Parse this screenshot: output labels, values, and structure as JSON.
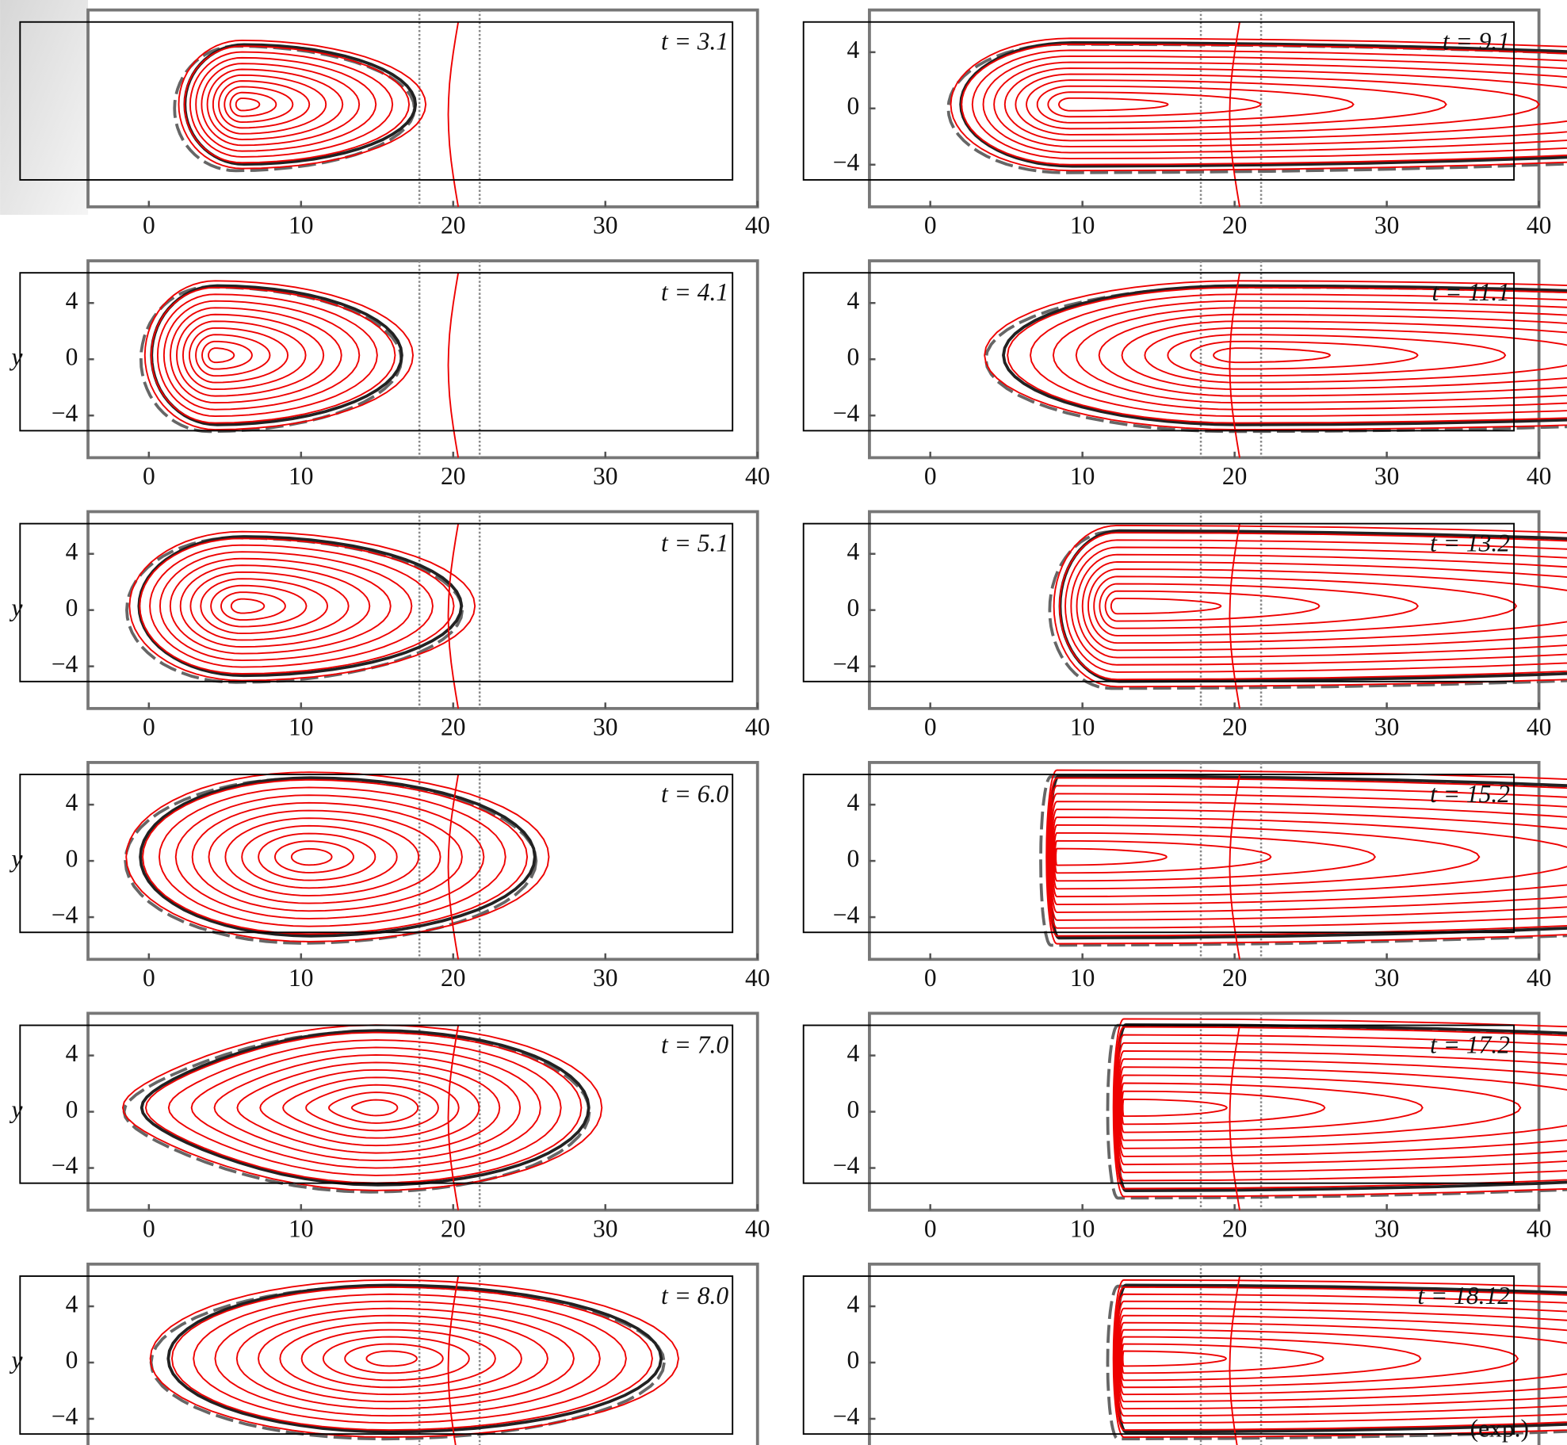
{
  "chart_data": [
    {
      "type": "contour",
      "title": "t = 3.1",
      "xlim": [
        -4,
        40
      ],
      "ylim": [
        -7,
        7
      ],
      "xticks": [
        0,
        10,
        20,
        30,
        40
      ]
    },
    {
      "type": "contour",
      "title": "t = 9.1",
      "xlim": [
        -4,
        40
      ],
      "ylim": [
        -7,
        7
      ],
      "xticks": [
        0,
        10,
        20,
        30,
        40
      ],
      "yticks": [
        {
          "value": -4,
          "label": "−4"
        },
        0,
        4
      ]
    },
    {
      "type": "contour",
      "title": "t = 4.1",
      "ylabel": "y",
      "xlim": [
        -4,
        40
      ],
      "ylim": [
        -7,
        7
      ],
      "xticks": [
        0,
        10,
        20,
        30,
        40
      ],
      "yticks": [
        {
          "value": -4,
          "label": "−4"
        },
        0,
        4
      ]
    },
    {
      "type": "contour",
      "title": "t = 11.1",
      "xlim": [
        -4,
        40
      ],
      "ylim": [
        -7,
        7
      ],
      "xticks": [
        0,
        10,
        20,
        30,
        40
      ],
      "yticks": [
        {
          "value": -4,
          "label": "−4"
        },
        0,
        4
      ]
    },
    {
      "type": "contour",
      "title": "t = 5.1",
      "ylabel": "y",
      "xlim": [
        -4,
        40
      ],
      "ylim": [
        -7,
        7
      ],
      "xticks": [
        0,
        10,
        20,
        30,
        40
      ],
      "yticks": [
        {
          "value": -4,
          "label": "−4"
        },
        0,
        4
      ]
    },
    {
      "type": "contour",
      "title": "t = 13.2",
      "xlim": [
        -4,
        40
      ],
      "ylim": [
        -7,
        7
      ],
      "xticks": [
        0,
        10,
        20,
        30,
        40
      ],
      "yticks": [
        {
          "value": -4,
          "label": "−4"
        },
        0,
        4
      ]
    },
    {
      "type": "contour",
      "title": "t = 6.0",
      "ylabel": "y",
      "xlim": [
        -4,
        40
      ],
      "ylim": [
        -7,
        7
      ],
      "xticks": [
        0,
        10,
        20,
        30,
        40
      ],
      "yticks": [
        {
          "value": -4,
          "label": "−4"
        },
        0,
        4
      ]
    },
    {
      "type": "contour",
      "title": "t = 15.2",
      "xlim": [
        -4,
        40
      ],
      "ylim": [
        -7,
        7
      ],
      "xticks": [
        0,
        10,
        20,
        30,
        40
      ],
      "yticks": [
        {
          "value": -4,
          "label": "−4"
        },
        0,
        4
      ]
    },
    {
      "type": "contour",
      "title": "t = 7.0",
      "ylabel": "y",
      "xlim": [
        -4,
        40
      ],
      "ylim": [
        -7,
        7
      ],
      "xticks": [
        0,
        10,
        20,
        30,
        40
      ],
      "yticks": [
        {
          "value": -4,
          "label": "−4"
        },
        0,
        4
      ]
    },
    {
      "type": "contour",
      "title": "t = 17.2",
      "xlim": [
        -4,
        40
      ],
      "ylim": [
        -7,
        7
      ],
      "xticks": [
        0,
        10,
        20,
        30,
        40
      ],
      "yticks": [
        {
          "value": -4,
          "label": "−4"
        },
        0,
        4
      ]
    },
    {
      "type": "contour",
      "title": "t = 8.0",
      "ylabel": "y",
      "xlim": [
        -4,
        40
      ],
      "ylim": [
        -7,
        7
      ],
      "yticks": [
        {
          "value": -4,
          "label": "−4"
        },
        0,
        4
      ]
    },
    {
      "type": "contour",
      "title": "t = 18.12",
      "annotation": "(exp.)",
      "xlim": [
        -4,
        40
      ],
      "ylim": [
        -7,
        7
      ],
      "yticks": [
        {
          "value": -4,
          "label": "−4"
        },
        0,
        4
      ]
    }
  ]
}
